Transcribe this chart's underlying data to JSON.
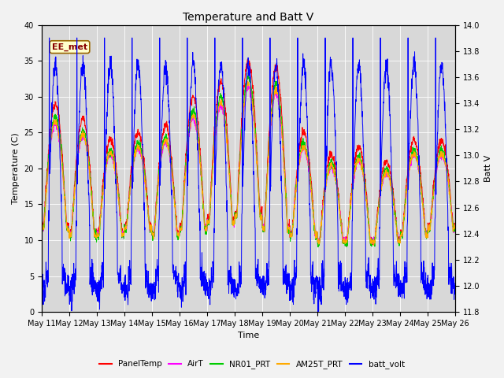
{
  "title": "Temperature and Batt V",
  "ylabel_left": "Temperature (C)",
  "ylabel_right": "Batt V",
  "xlabel": "Time",
  "annotation_text": "EE_met",
  "ylim_left": [
    0,
    40
  ],
  "ylim_right": [
    11.8,
    14.0
  ],
  "xtick_labels": [
    "May 11",
    "May 12",
    "May 13",
    "May 14",
    "May 15",
    "May 16",
    "May 17",
    "May 18",
    "May 19",
    "May 20",
    "May 21",
    "May 22",
    "May 23",
    "May 24",
    "May 25",
    "May 26"
  ],
  "colors": {
    "PanelTemp": "#ff0000",
    "AirT": "#ff00ff",
    "NR01_PRT": "#00cc00",
    "AM25T_PRT": "#ffaa00",
    "batt_volt": "#0000ff"
  },
  "legend_labels": [
    "PanelTemp",
    "AirT",
    "NR01_PRT",
    "AM25T_PRT",
    "batt_volt"
  ],
  "background_color": "#d8d8d8",
  "fig_facecolor": "#f2f2f2",
  "title_fontsize": 10,
  "label_fontsize": 8,
  "tick_fontsize": 7,
  "annotation_fontsize": 8
}
